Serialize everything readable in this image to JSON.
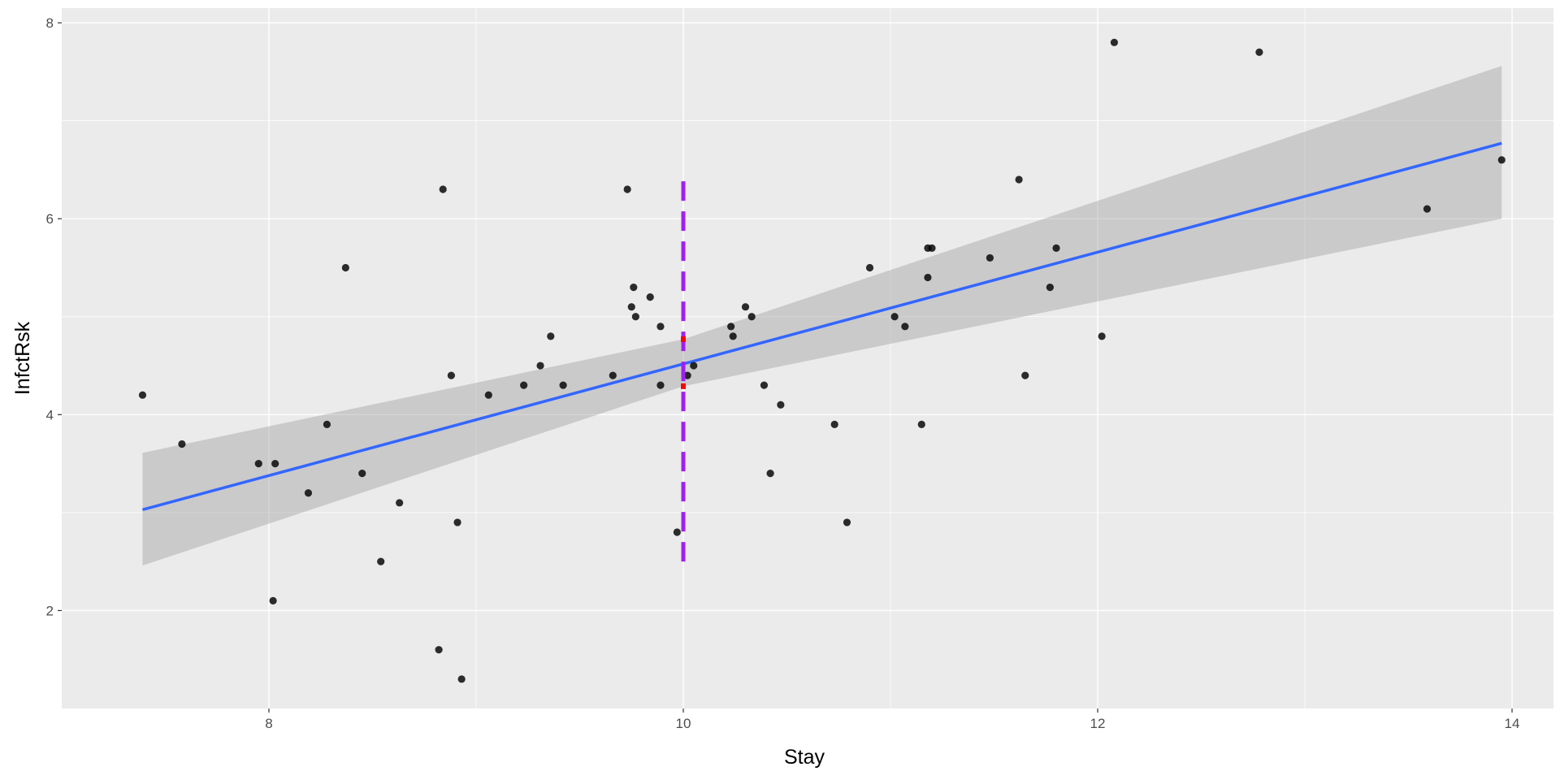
{
  "chart_data": {
    "type": "scatter",
    "title": "",
    "xlabel": "Stay",
    "ylabel": "InfctRsk",
    "xlim": [
      7.0,
      14.2
    ],
    "ylim": [
      1.0,
      8.15
    ],
    "x_ticks": [
      {
        "value": 8,
        "label": "8"
      },
      {
        "value": 10,
        "label": "10"
      },
      {
        "value": 12,
        "label": "12"
      },
      {
        "value": 14,
        "label": "14"
      }
    ],
    "y_ticks": [
      {
        "value": 2,
        "label": "2"
      },
      {
        "value": 4,
        "label": "4"
      },
      {
        "value": 6,
        "label": "6"
      },
      {
        "value": 8,
        "label": "8"
      }
    ],
    "grid": true,
    "panel_background": "#ebebeb",
    "grid_color": "#ffffff",
    "points": [
      {
        "x": 7.39,
        "y": 4.2
      },
      {
        "x": 7.58,
        "y": 3.7
      },
      {
        "x": 7.95,
        "y": 3.5
      },
      {
        "x": 8.03,
        "y": 3.5
      },
      {
        "x": 8.02,
        "y": 2.1
      },
      {
        "x": 8.19,
        "y": 3.2
      },
      {
        "x": 8.28,
        "y": 3.9
      },
      {
        "x": 8.37,
        "y": 5.5
      },
      {
        "x": 8.45,
        "y": 3.4
      },
      {
        "x": 8.54,
        "y": 2.5
      },
      {
        "x": 8.63,
        "y": 3.1
      },
      {
        "x": 8.82,
        "y": 1.6
      },
      {
        "x": 8.84,
        "y": 6.3
      },
      {
        "x": 8.88,
        "y": 4.4
      },
      {
        "x": 8.91,
        "y": 2.9
      },
      {
        "x": 8.93,
        "y": 1.3
      },
      {
        "x": 9.06,
        "y": 4.2
      },
      {
        "x": 9.23,
        "y": 4.3
      },
      {
        "x": 9.31,
        "y": 4.5
      },
      {
        "x": 9.36,
        "y": 4.8
      },
      {
        "x": 9.42,
        "y": 4.3
      },
      {
        "x": 9.66,
        "y": 4.4
      },
      {
        "x": 9.73,
        "y": 6.3
      },
      {
        "x": 9.75,
        "y": 5.1
      },
      {
        "x": 9.76,
        "y": 5.3
      },
      {
        "x": 9.77,
        "y": 5.0
      },
      {
        "x": 9.84,
        "y": 5.2
      },
      {
        "x": 9.89,
        "y": 4.9
      },
      {
        "x": 9.89,
        "y": 4.3
      },
      {
        "x": 9.97,
        "y": 2.8
      },
      {
        "x": 10.02,
        "y": 4.4
      },
      {
        "x": 10.05,
        "y": 4.5
      },
      {
        "x": 10.23,
        "y": 4.9
      },
      {
        "x": 10.24,
        "y": 4.8
      },
      {
        "x": 10.3,
        "y": 5.1
      },
      {
        "x": 10.33,
        "y": 5.0
      },
      {
        "x": 10.39,
        "y": 4.3
      },
      {
        "x": 10.42,
        "y": 3.4
      },
      {
        "x": 10.47,
        "y": 4.1
      },
      {
        "x": 10.73,
        "y": 3.9
      },
      {
        "x": 10.79,
        "y": 2.9
      },
      {
        "x": 10.9,
        "y": 5.5
      },
      {
        "x": 11.02,
        "y": 5.0
      },
      {
        "x": 11.07,
        "y": 4.9
      },
      {
        "x": 11.15,
        "y": 3.9
      },
      {
        "x": 11.18,
        "y": 5.7
      },
      {
        "x": 11.2,
        "y": 5.7
      },
      {
        "x": 11.18,
        "y": 5.4
      },
      {
        "x": 11.48,
        "y": 5.6
      },
      {
        "x": 11.62,
        "y": 6.4
      },
      {
        "x": 11.65,
        "y": 4.4
      },
      {
        "x": 11.77,
        "y": 5.3
      },
      {
        "x": 11.8,
        "y": 5.7
      },
      {
        "x": 12.02,
        "y": 4.8
      },
      {
        "x": 12.08,
        "y": 7.8
      },
      {
        "x": 12.78,
        "y": 7.7
      },
      {
        "x": 13.59,
        "y": 6.1
      },
      {
        "x": 13.95,
        "y": 6.6
      }
    ],
    "fit_line": {
      "x": [
        7.39,
        13.95
      ],
      "y": [
        3.03,
        6.77
      ],
      "color": "#3366ff"
    },
    "confidence_band": {
      "x": [
        7.39,
        10.0,
        13.95
      ],
      "lower": [
        2.46,
        4.29,
        6.0
      ],
      "upper": [
        3.61,
        4.77,
        7.56
      ],
      "color": "#999999"
    },
    "reference_line": {
      "x": 10.0,
      "y_from": 2.5,
      "y_to": 6.45,
      "style": "dashed",
      "color": "#a020f0"
    },
    "interval_marks": [
      {
        "x": 10.0,
        "y": 4.29,
        "color": "#ff0000"
      },
      {
        "x": 10.0,
        "y": 4.77,
        "color": "#ff0000"
      }
    ]
  }
}
